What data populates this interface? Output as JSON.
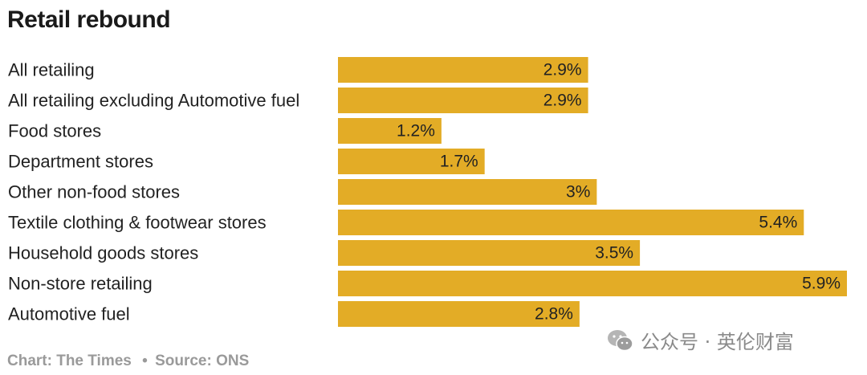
{
  "title": "Retail rebound",
  "footer": {
    "chart_credit": "Chart: The Times",
    "separator": "•",
    "source": "Source: ONS"
  },
  "watermark": {
    "text": "公众号 · 英伦财富",
    "icon": "wechat-logo-icon"
  },
  "colors": {
    "bar": "#E3AC26",
    "text": "#222222",
    "footer": "#9A9A9A"
  },
  "chart_data": {
    "type": "bar",
    "orientation": "horizontal",
    "title": "Retail rebound",
    "xlabel": "",
    "ylabel": "",
    "grid": false,
    "legend": "none",
    "xlim": [
      0,
      5.9
    ],
    "categories": [
      "All retailing",
      "All retailing excluding Automotive fuel",
      "Food stores",
      "Department stores",
      "Other non-food stores",
      "Textile clothing & footwear stores",
      "Household goods stores",
      "Non-store retailing",
      "Automotive fuel"
    ],
    "values": [
      2.9,
      2.9,
      1.2,
      1.7,
      3,
      5.4,
      3.5,
      5.9,
      2.8
    ],
    "value_labels": [
      "2.9%",
      "2.9%",
      "1.2%",
      "1.7%",
      "3%",
      "5.4%",
      "3.5%",
      "5.9%",
      "2.8%"
    ]
  }
}
